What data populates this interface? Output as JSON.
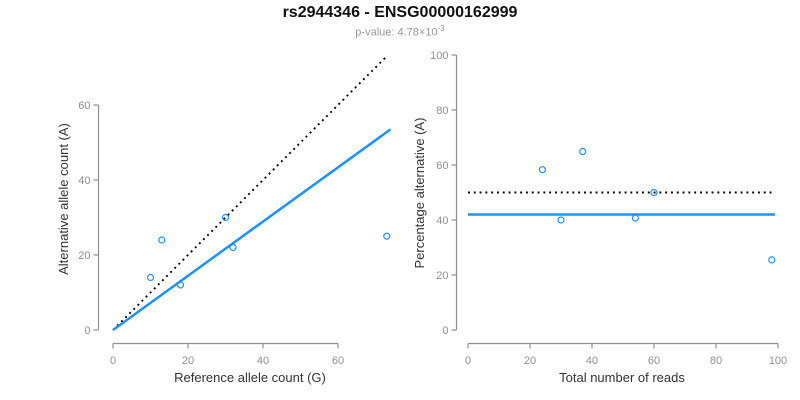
{
  "header": {
    "title": "rs2944346 - ENSG00000162999",
    "subtitle_prefix": "p-value: 4.78×10",
    "subtitle_exponent": "-3"
  },
  "colors": {
    "accent_blue": "#1E90FF",
    "reference_black": "#000000",
    "axis_gray": "#909090",
    "label_dark": "#333333",
    "background": "#ffffff"
  },
  "chart_data": [
    {
      "type": "scatter",
      "name": "allele-count-scatter",
      "title": "",
      "xlabel": "Reference allele count (G)",
      "ylabel": "Alternative allele count (A)",
      "xlim": [
        0,
        75
      ],
      "ylim": [
        0,
        74
      ],
      "xticks": [
        0,
        20,
        40,
        60
      ],
      "yticks": [
        0,
        20,
        40,
        60
      ],
      "grid": false,
      "legend": null,
      "points": [
        [
          10,
          14
        ],
        [
          13,
          24
        ],
        [
          18,
          12
        ],
        [
          30,
          30
        ],
        [
          32,
          22
        ],
        [
          73,
          25
        ]
      ],
      "lines": [
        {
          "label": "identity-line",
          "style": "dotted",
          "color": "#000000",
          "x1": 0,
          "y1": 0,
          "x2": 73,
          "y2": 73
        },
        {
          "label": "fit-line",
          "style": "solid",
          "color": "#1E90FF",
          "x1": 0,
          "y1": 0,
          "x2": 74,
          "y2": 53.5
        }
      ]
    },
    {
      "type": "scatter",
      "name": "percentage-alternative-scatter",
      "title": "",
      "xlabel": "Total number of reads",
      "ylabel": "Percentage alternative (A)",
      "xlim": [
        0,
        100
      ],
      "ylim": [
        0,
        100
      ],
      "xticks": [
        0,
        20,
        40,
        60,
        80,
        100
      ],
      "yticks": [
        0,
        20,
        40,
        60,
        80,
        100
      ],
      "grid": false,
      "legend": null,
      "points": [
        [
          24,
          58.3
        ],
        [
          30,
          40
        ],
        [
          37,
          64.9
        ],
        [
          54,
          40.7
        ],
        [
          60,
          50
        ],
        [
          98,
          25.5
        ]
      ],
      "lines": [
        {
          "label": "expected-50pct-line",
          "style": "dotted",
          "color": "#000000",
          "x1": 0,
          "y1": 50,
          "x2": 99,
          "y2": 50
        },
        {
          "label": "mean-42pct-line",
          "style": "solid",
          "color": "#1E90FF",
          "x1": 0,
          "y1": 42,
          "x2": 99,
          "y2": 42
        }
      ]
    }
  ]
}
